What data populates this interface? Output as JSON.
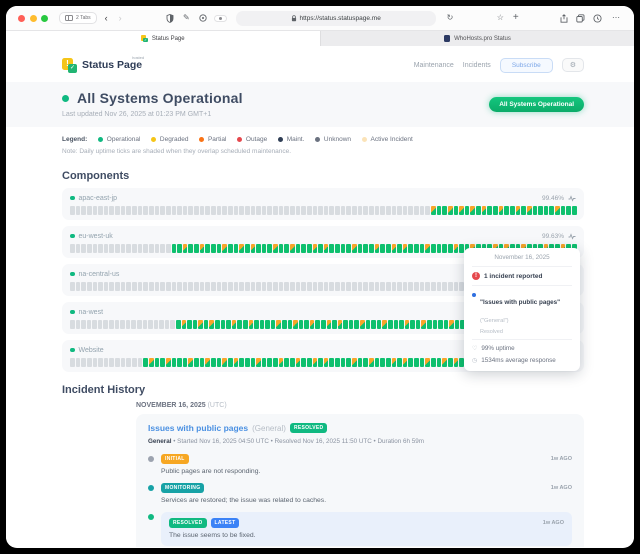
{
  "colors": {
    "operational": "#0ec06e",
    "maintenance_overlap": "#f7a52a",
    "nodata": "#d8dce0"
  },
  "browser": {
    "tabs_count": "2 Tabs",
    "url": "https://status.statuspage.me",
    "tab_active": "Status Page",
    "tab_inactive": "WhoHosts.pro Status"
  },
  "header": {
    "logo_text": "Status Page",
    "logo_sup": "hosted",
    "nav": [
      "Maintenance",
      "Incidents"
    ],
    "subscribe_label": "Subscribe",
    "gear_glyph": "⚙"
  },
  "hero": {
    "title": "All Systems Operational",
    "last_updated": "Last updated Nov 26, 2025 at 01:23 PM GMT+1",
    "status_pill": "All Systems Operational"
  },
  "legend": {
    "label": "Legend:",
    "items": [
      {
        "label": "Operational",
        "color": "#10b981"
      },
      {
        "label": "Degraded",
        "color": "#f5c518"
      },
      {
        "label": "Partial",
        "color": "#f97316"
      },
      {
        "label": "Outage",
        "color": "#e5484d"
      },
      {
        "label": "Maint.",
        "color": "#2f3e55"
      },
      {
        "label": "Unknown",
        "color": "#6b7280"
      },
      {
        "label": "Active Incident",
        "color": "#fbe3b8"
      }
    ],
    "note": "Note: Daily uptime ticks are shaded when they overlap scheduled maintenance."
  },
  "components": {
    "title": "Components",
    "rows": [
      {
        "name": "apac-east-jp",
        "uptime": "99.46%",
        "ticks": "................................................................sggsgsgsgsggsggsgsggggsggg"
      },
      {
        "name": "eu-west-uk",
        "uptime": "99.63%",
        "ticks": "..................ggsggsgggsggsgsgggsggsgggsgsggggsgggsggsgsgggsggggsggsgggsgsggsgggsggsgg"
      },
      {
        "name": "na-central-us",
        "uptime": "",
        "ticks": ".......................................................................................ggg"
      },
      {
        "name": "na-west",
        "uptime": "",
        "ticks": "...................gsggsgsgggsggsggggsggsggsggsgsgggsgggsgggsggsggggsggsggsgggsggsggsgggsgg"
      },
      {
        "name": "Website",
        "uptime": "",
        "ticks": ".............gsggsgggsggsggsgsgggsgggsggsggsgsggggsggsgggsgsgggsggsgsggsggsgggshsggsgggsgg"
      }
    ]
  },
  "tooltip": {
    "date": "November 16, 2025",
    "incident_count": "1 incident reported",
    "incident_title": "\"Issues with public pages\"",
    "incident_scope": "(\"General\")",
    "incident_status": "Resolved",
    "uptime": "99% uptime",
    "response": "1534ms average response",
    "heart_glyph": "♡",
    "clock_glyph": "◷"
  },
  "incidents": {
    "title": "Incident History",
    "date_heading": "NOVEMBER 16, 2025",
    "date_suffix": " (UTC)",
    "card": {
      "title": "Issues with public pages",
      "scope": "(General)",
      "status_badge": "RESOLVED",
      "status_badge_color": "#10b981",
      "meta_component": "General",
      "meta_rest": " • Started Nov 16, 2025 04:50 UTC • Resolved Nov 16, 2025 11:50 UTC • Duration 6h 59m",
      "updates": [
        {
          "badges": [
            {
              "label": "INITIAL",
              "color": "#f6a723"
            }
          ],
          "time": "1w AGO",
          "text": "Public pages are not responding.",
          "dot": "#9ca3af",
          "highlight": false
        },
        {
          "badges": [
            {
              "label": "MONITORING",
              "color": "#17a2a6"
            }
          ],
          "time": "1w AGO",
          "text": "Services are restored; the issue was related to caches.",
          "dot": "#17a2a6",
          "highlight": false
        },
        {
          "badges": [
            {
              "label": "RESOLVED",
              "color": "#10b981"
            },
            {
              "label": "LATEST",
              "color": "#3b82f6"
            }
          ],
          "time": "1w AGO",
          "text": "The issue seems to be fixed.",
          "dot": "#10b981",
          "highlight": true
        }
      ]
    }
  }
}
